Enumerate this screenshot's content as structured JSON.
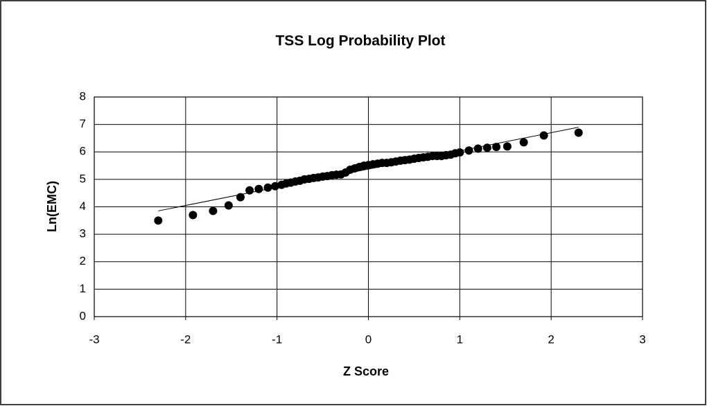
{
  "chart_data": {
    "type": "scatter",
    "title": "TSS Log Probability Plot",
    "xlabel": "Z Score",
    "ylabel": "Ln(EMC)",
    "xlim": [
      -3,
      3
    ],
    "xticks": [
      -3,
      -2,
      -1,
      0,
      1,
      2,
      3
    ],
    "ylim": [
      0,
      8
    ],
    "yticks": [
      0,
      1,
      2,
      3,
      4,
      5,
      6,
      7,
      8
    ],
    "grid": true,
    "color": "#000000",
    "x": [
      -2.3,
      -1.92,
      -1.7,
      -1.53,
      -1.4,
      -1.3,
      -1.2,
      -1.1,
      -1.02,
      -0.95,
      -0.9,
      -0.85,
      -0.8,
      -0.75,
      -0.7,
      -0.65,
      -0.6,
      -0.55,
      -0.5,
      -0.45,
      -0.4,
      -0.35,
      -0.3,
      -0.25,
      -0.2,
      -0.15,
      -0.1,
      -0.05,
      0,
      0.05,
      0.1,
      0.15,
      0.2,
      0.25,
      0.3,
      0.35,
      0.4,
      0.45,
      0.5,
      0.55,
      0.6,
      0.65,
      0.7,
      0.75,
      0.8,
      0.85,
      0.9,
      0.95,
      1.0,
      1.1,
      1.2,
      1.3,
      1.4,
      1.52,
      1.7,
      1.92,
      2.3
    ],
    "values": [
      3.5,
      3.7,
      3.85,
      4.05,
      4.35,
      4.6,
      4.65,
      4.7,
      4.75,
      4.8,
      4.85,
      4.88,
      4.92,
      4.95,
      5.0,
      5.02,
      5.05,
      5.07,
      5.1,
      5.12,
      5.15,
      5.17,
      5.18,
      5.25,
      5.35,
      5.4,
      5.45,
      5.5,
      5.52,
      5.55,
      5.57,
      5.6,
      5.6,
      5.62,
      5.65,
      5.68,
      5.7,
      5.72,
      5.75,
      5.78,
      5.8,
      5.82,
      5.85,
      5.85,
      5.85,
      5.88,
      5.9,
      5.95,
      5.98,
      6.05,
      6.12,
      6.15,
      6.18,
      6.2,
      6.35,
      6.6,
      6.7
    ],
    "trendline": {
      "x": [
        -2.3,
        2.3
      ],
      "values": [
        3.85,
        6.9
      ]
    }
  }
}
